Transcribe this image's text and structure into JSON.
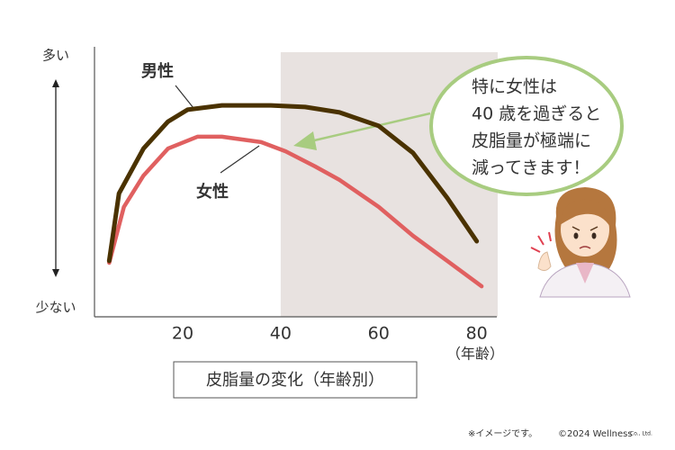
{
  "chart_data": {
    "type": "line",
    "y_top_label": "多い",
    "y_bottom_label": "少ない",
    "x_unit_label": "（年齢）",
    "caption": "皮脂量の変化（年齢別）",
    "xlim": [
      2,
      83
    ],
    "ylim": [
      0,
      100
    ],
    "xticks": [
      20,
      40,
      60,
      80
    ],
    "shade_from": 40,
    "shade_color": "#e8e2e0",
    "series": [
      {
        "name": "男性",
        "color": "#4a3200",
        "x": [
          5,
          7,
          12,
          17,
          21,
          28,
          38,
          45,
          52,
          60,
          67,
          74,
          80
        ],
        "values": [
          20.7,
          45.7,
          62.3,
          72.3,
          76.7,
          78.3,
          78.3,
          77.7,
          75.7,
          70.7,
          60.7,
          44,
          28
        ]
      },
      {
        "name": "女性",
        "color": "#e06060",
        "x": [
          5,
          8,
          12,
          17,
          23,
          28,
          36,
          41,
          47,
          52,
          60,
          67,
          74,
          81
        ],
        "values": [
          20,
          40.7,
          52.3,
          62.3,
          66.7,
          66.7,
          64.7,
          61.3,
          55.7,
          50.7,
          40.7,
          30,
          20.7,
          11.3
        ]
      }
    ],
    "bubble_lines": [
      "特に女性は",
      "40 歳を過ぎると",
      "皮脂量が極端に",
      "減ってきます！"
    ],
    "note": "※イメージです。",
    "copyright": "©2024 Wellness",
    "copyright_suffix": "Co., Ltd."
  }
}
